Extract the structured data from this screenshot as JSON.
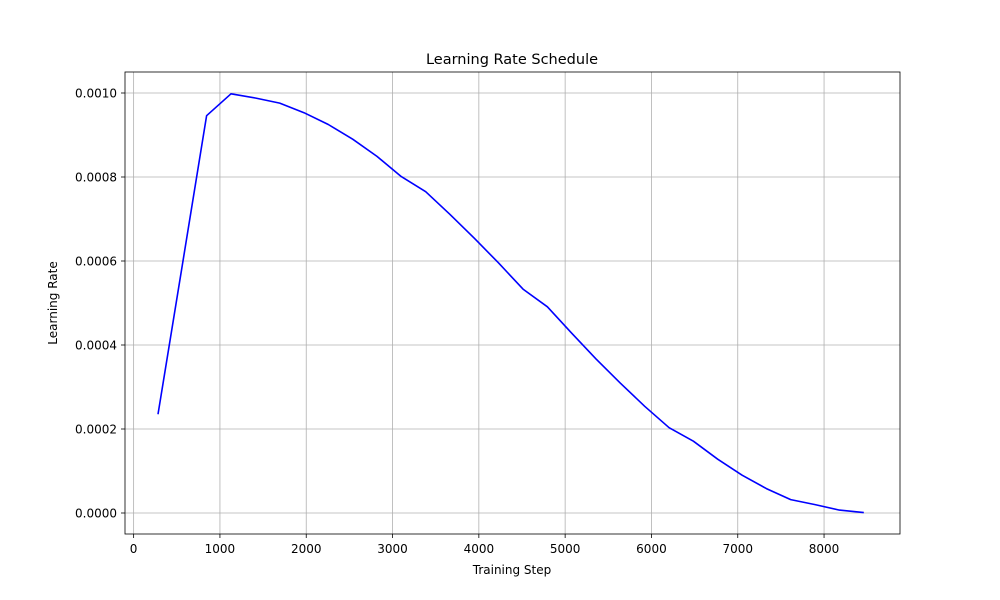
{
  "chart_data": {
    "type": "line",
    "title": "Learning Rate Schedule",
    "xlabel": "Training Step",
    "ylabel": "Learning Rate",
    "xlim": [
      -100,
      8880
    ],
    "ylim": [
      -5e-05,
      0.00105
    ],
    "xticks": [
      0,
      1000,
      2000,
      3000,
      4000,
      5000,
      6000,
      7000,
      8000
    ],
    "xtick_labels": [
      "0",
      "1000",
      "2000",
      "3000",
      "4000",
      "5000",
      "6000",
      "7000",
      "8000"
    ],
    "yticks": [
      0.0,
      0.0002,
      0.0004,
      0.0006,
      0.0008,
      0.001
    ],
    "ytick_labels": [
      "0.0000",
      "0.0002",
      "0.0004",
      "0.0006",
      "0.0008",
      "0.0010"
    ],
    "grid": true,
    "series": [
      {
        "color": "#0000ff",
        "x": [
          282,
          564,
          846,
          1128,
          1410,
          1692,
          1974,
          2256,
          2538,
          2820,
          3102,
          3384,
          3666,
          3948,
          4230,
          4512,
          4794,
          5076,
          5358,
          5640,
          5922,
          6204,
          6486,
          6768,
          7050,
          7332,
          7614,
          7896,
          8178,
          8460
        ],
        "y": [
          0.000235,
          0.00059,
          0.000946,
          0.000998,
          0.000988,
          0.000976,
          0.000953,
          0.000925,
          0.00089,
          0.000849,
          0.000801,
          0.000765,
          0.000711,
          0.000654,
          0.000595,
          0.000533,
          0.000491,
          0.000428,
          0.000367,
          0.000309,
          0.000254,
          0.000203,
          0.000171,
          0.000128,
          9e-05,
          5.8e-05,
          3.2e-05,
          2e-05,
          7e-06,
          1e-06
        ]
      }
    ]
  }
}
